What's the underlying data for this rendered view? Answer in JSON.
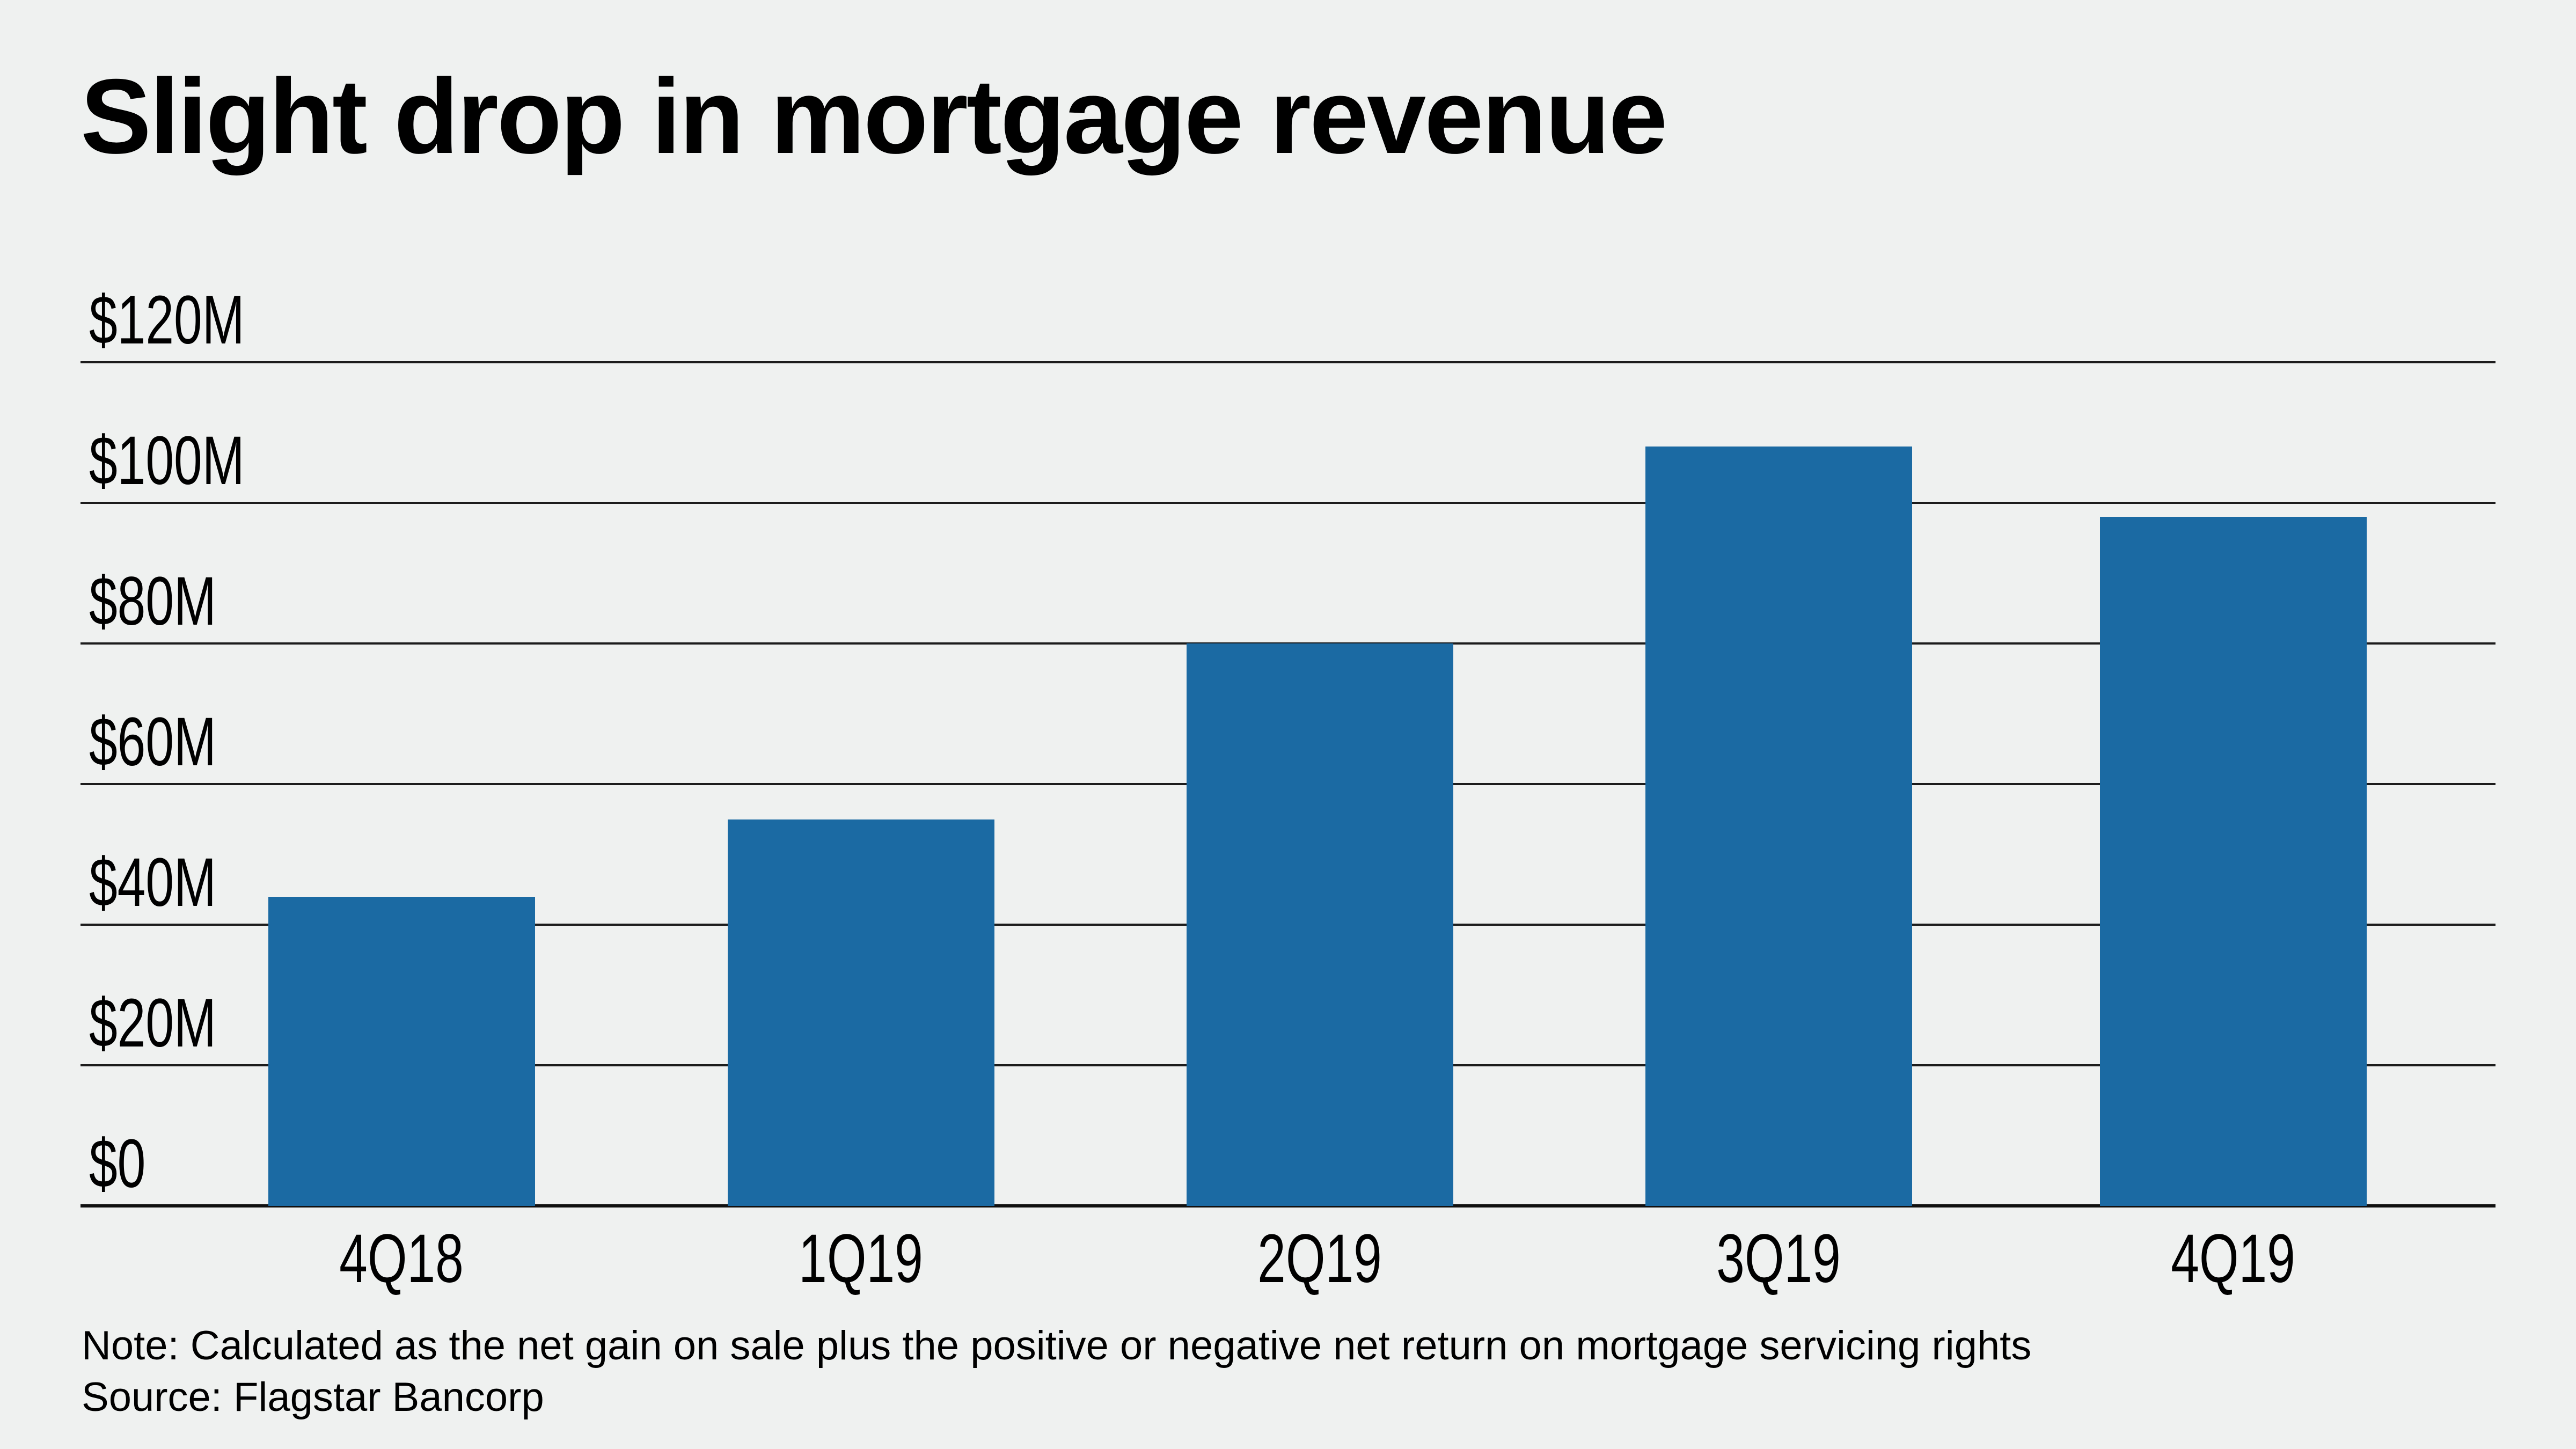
{
  "page": {
    "background_color": "#eff1f0",
    "text_color": "#000000"
  },
  "header": {
    "title": "Slight drop in mortgage revenue"
  },
  "footer": {
    "note": "Note: Calculated as the net gain on sale plus the positive or negative net return on mortgage servicing rights",
    "source": "Source: Flagstar Bancorp"
  },
  "chart_data": {
    "type": "bar",
    "title": "Slight drop in mortgage revenue",
    "series_name": "Mortgage revenue",
    "categories": [
      "4Q18",
      "1Q19",
      "2Q19",
      "3Q19",
      "4Q19"
    ],
    "values": [
      44,
      55,
      80,
      108,
      98
    ],
    "value_unit": "$M (millions USD)",
    "ylim": [
      0,
      120
    ],
    "ytick_interval": 20,
    "yticks": [
      {
        "label": "$120M",
        "value": 120
      },
      {
        "label": "$100M",
        "value": 100
      },
      {
        "label": "$80M",
        "value": 80
      },
      {
        "label": "$60M",
        "value": 60
      },
      {
        "label": "$40M",
        "value": 40
      },
      {
        "label": "$20M",
        "value": 20
      },
      {
        "label": "$0",
        "value": 0
      }
    ],
    "grid": true,
    "legend": false,
    "bar_color": "#1b6aa3",
    "gridline_color": "#1c1c1c",
    "note": "Note: Calculated as the net gain on sale plus the positive or negative net return on mortgage servicing rights",
    "source": "Source: Flagstar Bancorp"
  }
}
